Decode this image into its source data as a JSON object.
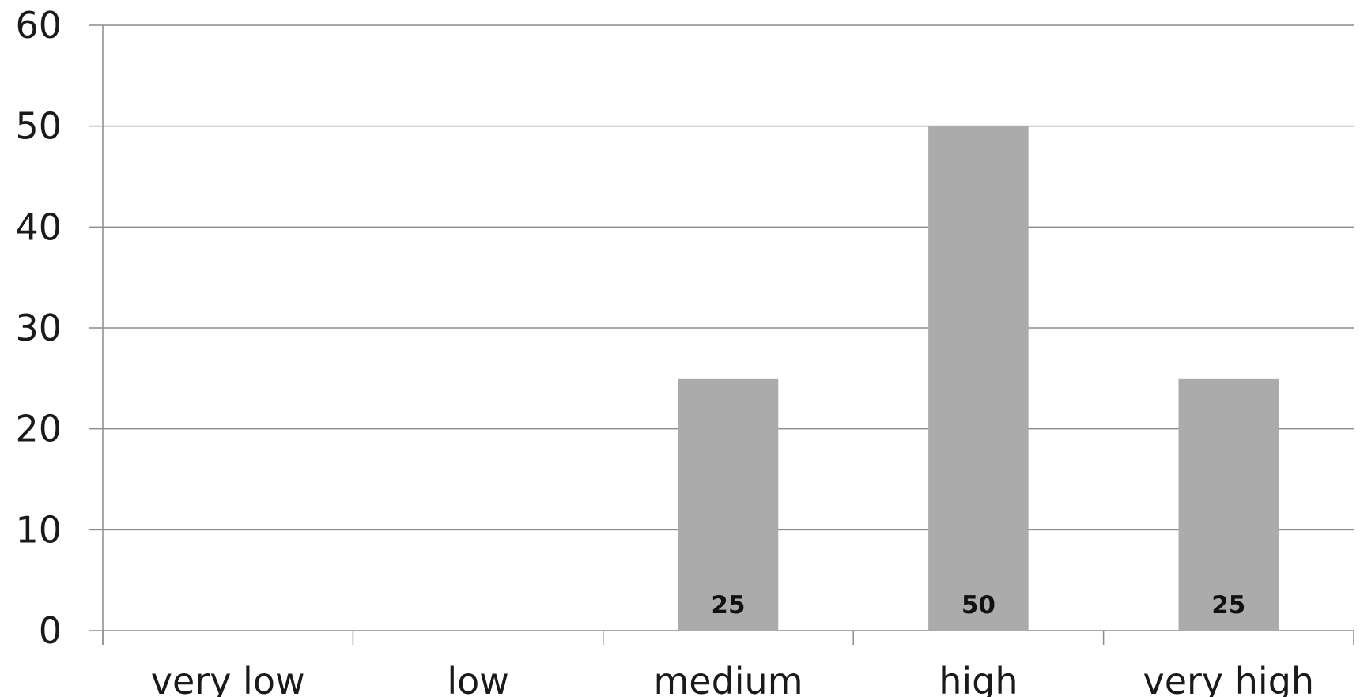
{
  "chart_data": {
    "type": "bar",
    "categories": [
      "very low",
      "low",
      "medium",
      "high",
      "very high"
    ],
    "values": [
      0,
      0,
      25,
      50,
      25
    ],
    "data_labels": [
      "",
      "",
      "25",
      "50",
      "25"
    ],
    "title": "",
    "xlabel": "",
    "ylabel": "",
    "ylim": [
      0,
      60
    ],
    "yticks": [
      0,
      10,
      20,
      30,
      40,
      50,
      60
    ],
    "grid": true,
    "legend": "none",
    "colors": {
      "bar": "#ababab",
      "grid": "#8c8c8c",
      "text": "#1a1a1a"
    }
  }
}
